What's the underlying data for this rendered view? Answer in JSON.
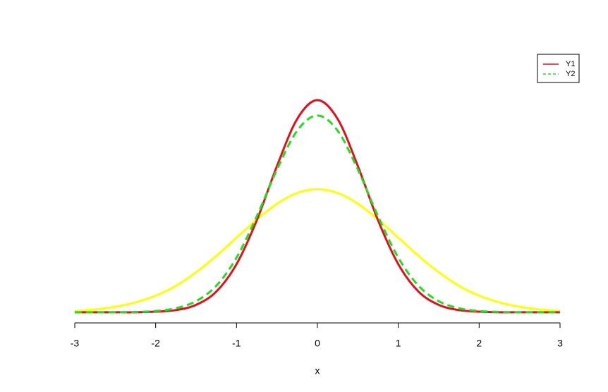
{
  "chart_data": {
    "type": "line",
    "xlabel": "x",
    "x": [
      -3,
      -2.75,
      -2.5,
      -2.25,
      -2,
      -1.75,
      -1.5,
      -1.25,
      -1,
      -0.75,
      -0.5,
      -0.25,
      0,
      0.25,
      0.5,
      0.75,
      1,
      1.25,
      1.5,
      1.75,
      2,
      2.25,
      2.5,
      2.75,
      3
    ],
    "series": [
      {
        "color": "#ffff00",
        "dash": false,
        "values": [
          0.004,
          0.009,
          0.018,
          0.032,
          0.054,
          0.086,
          0.13,
          0.183,
          0.242,
          0.301,
          0.352,
          0.387,
          0.399,
          0.387,
          0.352,
          0.301,
          0.242,
          0.183,
          0.13,
          0.086,
          0.054,
          0.032,
          0.018,
          0.009,
          0.004
        ]
      },
      {
        "name": "Y1",
        "color": "#e3101a",
        "dash": false,
        "values": [
          0,
          0,
          0,
          0,
          0.002,
          0.007,
          0.024,
          0.067,
          0.156,
          0.298,
          0.474,
          0.627,
          0.688,
          0.627,
          0.474,
          0.298,
          0.156,
          0.067,
          0.024,
          0.007,
          0.002,
          0,
          0,
          0,
          0
        ]
      },
      {
        "name": "Y2",
        "color": "#22dd22",
        "dash": true,
        "values": [
          0,
          0,
          0,
          0.001,
          0.004,
          0.013,
          0.036,
          0.086,
          0.177,
          0.311,
          0.463,
          0.589,
          0.638,
          0.589,
          0.463,
          0.311,
          0.177,
          0.086,
          0.036,
          0.013,
          0.004,
          0.001,
          0,
          0,
          0
        ]
      }
    ],
    "xlim": [
      -3,
      3
    ],
    "xticks": [
      -3,
      -2,
      -1,
      0,
      1,
      2,
      3
    ],
    "ylim": [
      -0.03,
      0.72
    ],
    "legend": "top-right"
  }
}
